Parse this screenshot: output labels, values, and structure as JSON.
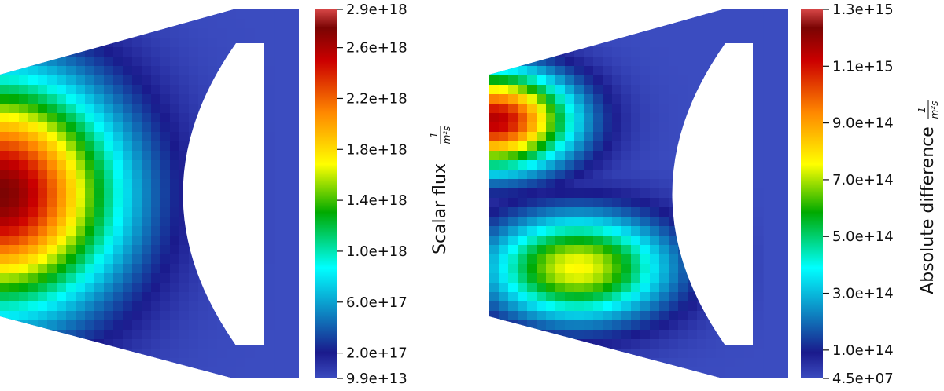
{
  "chart_data": [
    {
      "type": "heatmap",
      "colorbar": {
        "title": "Scalar flux",
        "unit_numerator": "1",
        "unit_denominator": "m²s",
        "min": 99000000000000.0,
        "max": 2.9e+18,
        "tick_labels": [
          "2.9e+18",
          "2.6e+18",
          "2.2e+18",
          "1.8e+18",
          "1.4e+18",
          "1.0e+18",
          "6.0e+17",
          "2.0e+17",
          "9.9e+13"
        ],
        "tick_values": [
          2.9e+18,
          2.6e+18,
          2.2e+18,
          1.8e+18,
          1.4e+18,
          1e+18,
          6e+17,
          2e+17,
          99000000000000.0
        ],
        "colormap": [
          "#3b4cc0",
          "#1a1a8c",
          "#00ffff",
          "#00aa00",
          "#ffff00",
          "#ff8800",
          "#cc0000",
          "#7a0403",
          "#d54545"
        ]
      },
      "field": {
        "peaks": [
          {
            "x": 0.0,
            "y": 0.5,
            "value": 2.75e+18,
            "spread_x": 0.42,
            "spread_y": 0.3
          }
        ]
      }
    },
    {
      "type": "heatmap",
      "colorbar": {
        "title": "Absolute difference",
        "unit_numerator": "1",
        "unit_denominator": "m²s",
        "min": 45000000.0,
        "max": 1300000000000000.0,
        "tick_labels": [
          "1.3e+15",
          "1.1e+15",
          "9.0e+14",
          "7.0e+14",
          "5.0e+14",
          "3.0e+14",
          "1.0e+14",
          "4.5e+07"
        ],
        "tick_values": [
          1300000000000000.0,
          1100000000000000.0,
          900000000000000.0,
          700000000000000.0,
          500000000000000.0,
          300000000000000.0,
          100000000000000.0,
          45000000.0
        ],
        "colormap": [
          "#3b4cc0",
          "#1a1a8c",
          "#00ffff",
          "#00aa00",
          "#ffff00",
          "#ff8800",
          "#cc0000",
          "#7a0403",
          "#d54545"
        ]
      },
      "field": {
        "peaks": [
          {
            "x": 0.02,
            "y": 0.3,
            "value": 1150000000000000.0,
            "spread_x": 0.28,
            "spread_y": 0.13
          },
          {
            "x": 0.33,
            "y": 0.7,
            "value": 760000000000000.0,
            "spread_x": 0.33,
            "spread_y": 0.14
          }
        ]
      }
    }
  ]
}
